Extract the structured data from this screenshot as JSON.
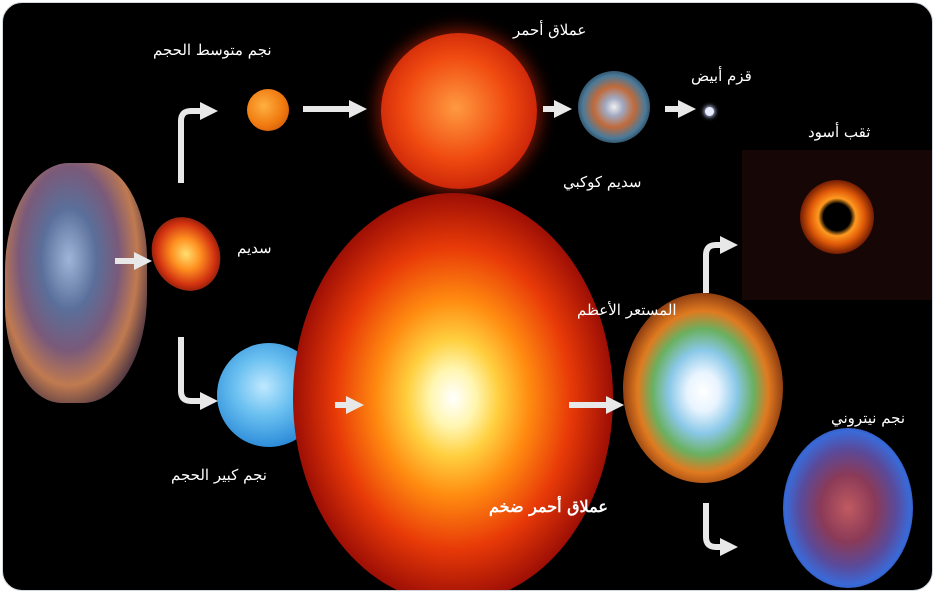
{
  "labels": {
    "nebula": "سديم",
    "medium_star": "نجم متوسط الحجم",
    "red_giant": "عملاق أحمر",
    "planetary_nebula": "سديم كوكبي",
    "white_dwarf": "قزم أبيض",
    "massive_star": "نجم كبير الحجم",
    "red_supergiant": "عملاق أحمر ضخم",
    "supernova": "المستعر الأعظم",
    "black_hole": "ثقب أسود",
    "neutron_star": "نجم نيتروني"
  },
  "colors": {
    "background": "#000000",
    "arrow": "#e8e8e8",
    "label": "#ffffff"
  }
}
